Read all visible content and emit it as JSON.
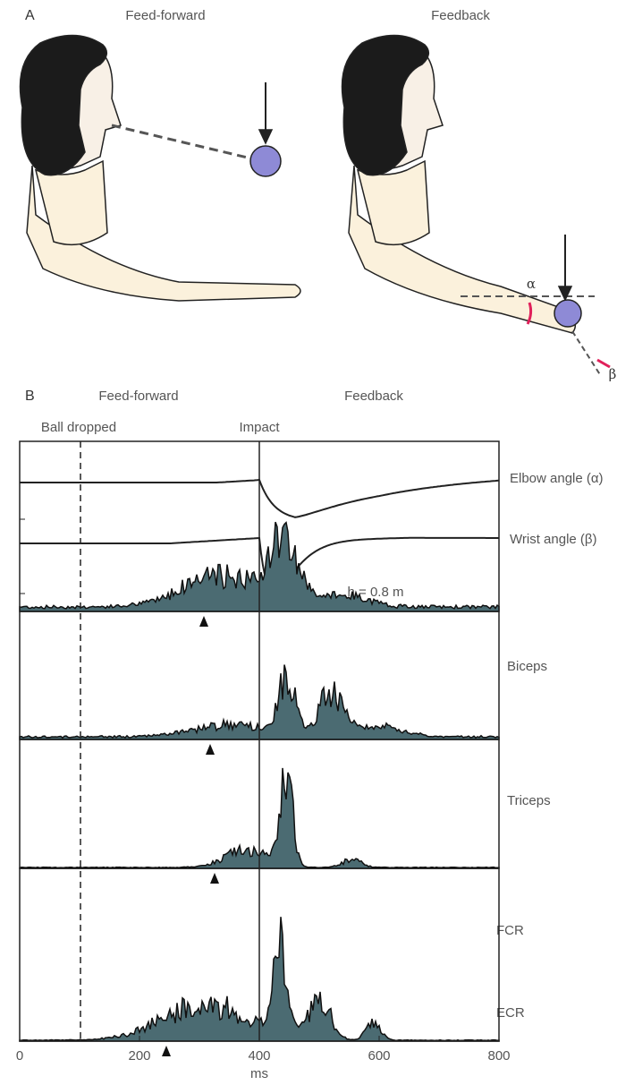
{
  "panel_a": {
    "label": "A",
    "titles": [
      "Feed-forward",
      "Feedback"
    ],
    "angle_labels": [
      "α",
      "β"
    ]
  },
  "panel_b": {
    "label": "B",
    "phases": [
      "Feed-forward",
      "Feedback"
    ],
    "events": [
      "Ball dropped",
      "Impact"
    ],
    "traces": [
      "Elbow angle (α)",
      "Wrist angle (β)"
    ],
    "height_note": "h = 0.8 m",
    "muscles": [
      "Biceps",
      "Triceps",
      "FCR",
      "ECR"
    ],
    "x_axis": {
      "label": "ms",
      "ticks": [
        0,
        200,
        400,
        600,
        800
      ]
    }
  }
}
